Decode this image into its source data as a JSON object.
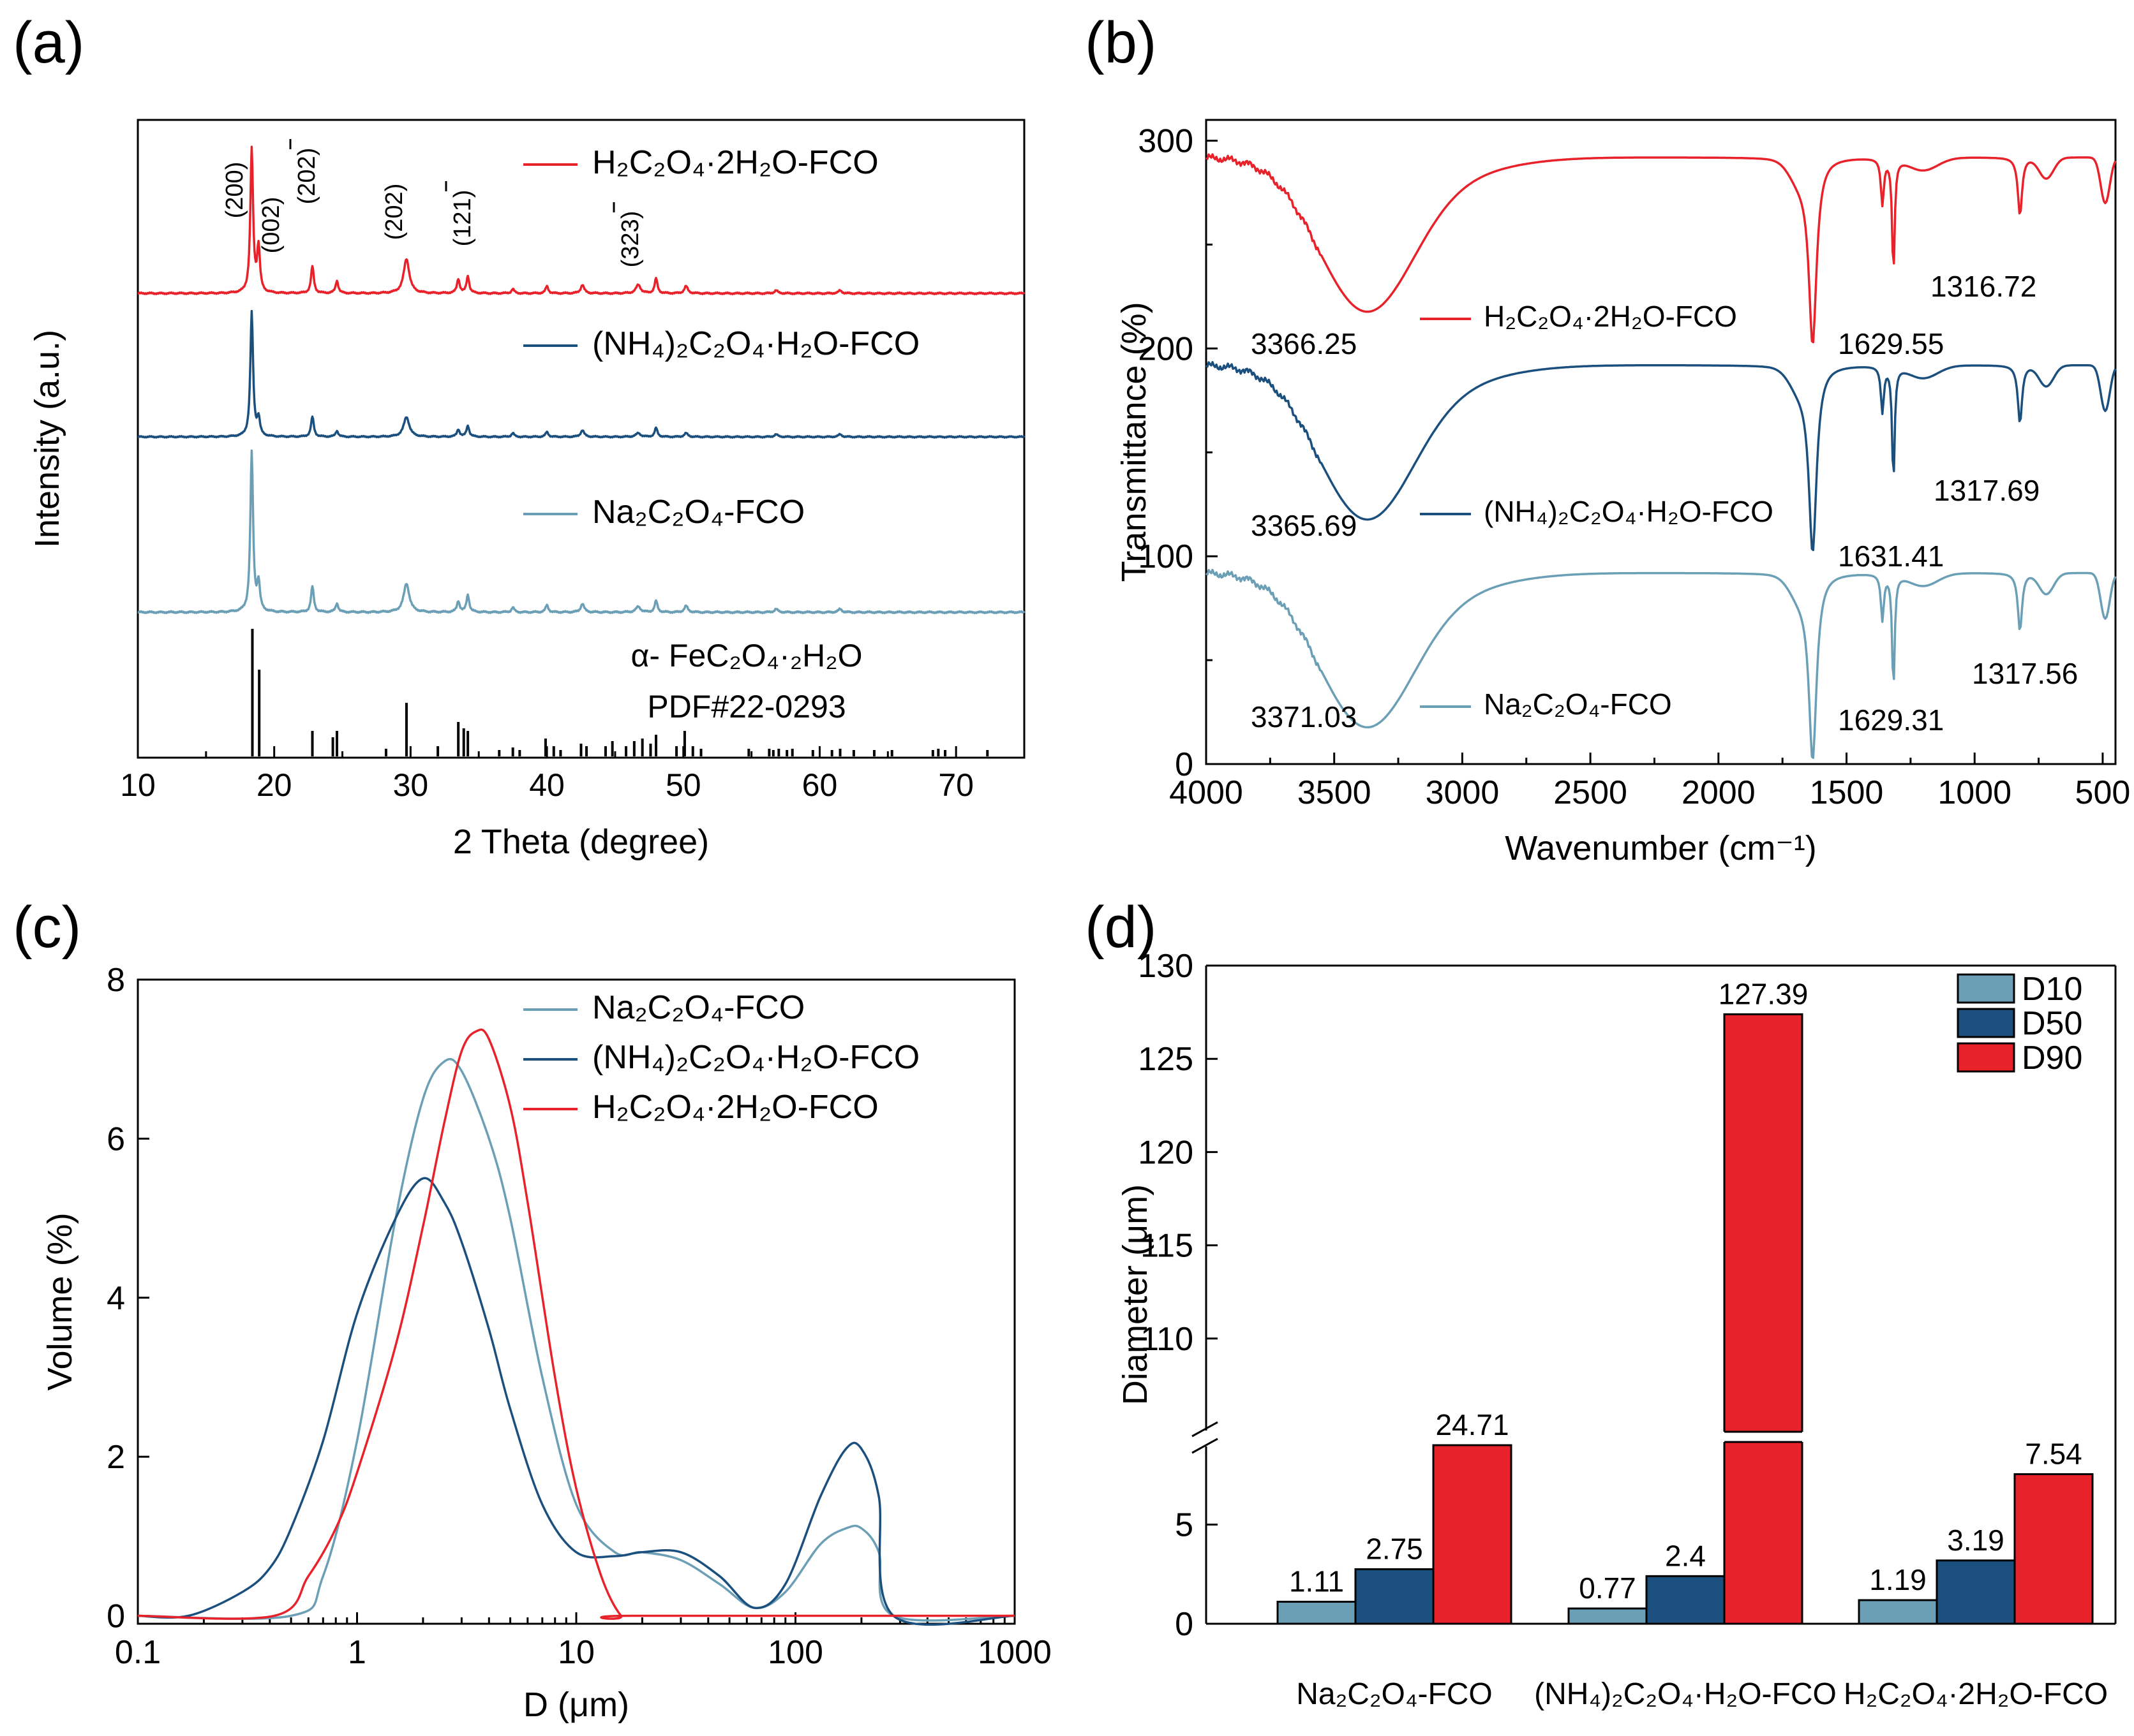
{
  "panels": {
    "a": {
      "label": "(a)"
    },
    "b": {
      "label": "(b)"
    },
    "c": {
      "label": "(c)"
    },
    "d": {
      "label": "(d)"
    }
  },
  "colors": {
    "red": "#e8222a",
    "navy": "#1b4f7d",
    "teal": "#6b9fb5",
    "black": "#000000"
  },
  "chart_data": [
    {
      "id": "a",
      "type": "line",
      "title": "",
      "xlabel": "2 Theta (degree)",
      "ylabel": "Intensity (a.u.)",
      "xlim": [
        10,
        75
      ],
      "xticks": [
        10,
        20,
        30,
        40,
        50,
        60,
        70
      ],
      "series": [
        {
          "name": "H₂C₂O₄·2H₂O-FCO",
          "color": "red"
        },
        {
          "name": "(NH₄)₂C₂O₄·H₂O-FCO",
          "color": "navy"
        },
        {
          "name": "Na₂C₂O₄-FCO",
          "color": "teal"
        }
      ],
      "peak_labels": [
        {
          "x": 18.4,
          "text": "(200)"
        },
        {
          "x": 19.2,
          "text": "(002)"
        },
        {
          "x": 22.8,
          "text": "(202)",
          "bar": true
        },
        {
          "x": 29.7,
          "text": "(202)"
        },
        {
          "x": 34.2,
          "text": "(121)",
          "bar": true
        },
        {
          "x": 48.0,
          "text": "(323)",
          "bar": true
        }
      ],
      "reference": {
        "title": "α- FeC₂O₄·₂H₂O",
        "pdf": "PDF#22-0293",
        "peaks": [
          [
            18.4,
            1.0
          ],
          [
            18.9,
            0.68
          ],
          [
            22.8,
            0.2
          ],
          [
            24.3,
            0.15
          ],
          [
            24.6,
            0.2
          ],
          [
            28.2,
            0.06
          ],
          [
            29.7,
            0.42
          ],
          [
            32.0,
            0.08
          ],
          [
            33.5,
            0.27
          ],
          [
            33.9,
            0.22
          ],
          [
            34.2,
            0.2
          ],
          [
            36.5,
            0.05
          ],
          [
            37.5,
            0.07
          ],
          [
            38.0,
            0.05
          ],
          [
            39.9,
            0.14
          ],
          [
            40.5,
            0.08
          ],
          [
            41.0,
            0.05
          ],
          [
            42.5,
            0.1
          ],
          [
            42.9,
            0.08
          ],
          [
            44.3,
            0.08
          ],
          [
            44.8,
            0.12
          ],
          [
            45.8,
            0.08
          ],
          [
            46.4,
            0.12
          ],
          [
            47.0,
            0.14
          ],
          [
            47.6,
            0.1
          ],
          [
            48.0,
            0.17
          ],
          [
            49.5,
            0.08
          ],
          [
            50.1,
            0.2
          ],
          [
            50.7,
            0.08
          ],
          [
            51.3,
            0.06
          ],
          [
            54.8,
            0.06
          ],
          [
            56.3,
            0.06
          ],
          [
            56.6,
            0.05
          ],
          [
            57.0,
            0.06
          ],
          [
            57.6,
            0.05
          ],
          [
            58.0,
            0.06
          ],
          [
            59.5,
            0.05
          ],
          [
            60.9,
            0.05
          ],
          [
            61.5,
            0.06
          ],
          [
            62.5,
            0.05
          ],
          [
            64.0,
            0.05
          ],
          [
            65.3,
            0.05
          ],
          [
            68.3,
            0.05
          ],
          [
            68.7,
            0.06
          ],
          [
            69.2,
            0.05
          ],
          [
            72.3,
            0.05
          ]
        ]
      }
    },
    {
      "id": "b",
      "type": "line",
      "title": "",
      "xlabel": "Wavenumber (cm⁻¹)",
      "ylabel": "Transmittance (%)",
      "xlim": [
        4000,
        450
      ],
      "ylim": [
        0,
        310
      ],
      "xticks": [
        4000,
        3500,
        3000,
        2500,
        2000,
        1500,
        1000,
        500
      ],
      "yticks": [
        0,
        100,
        200,
        300
      ],
      "series": [
        {
          "name": "H₂C₂O₄·2H₂O-FCO",
          "color": "red",
          "offset": 200,
          "peaks": [
            "3366.25",
            "1629.55",
            "1316.72"
          ]
        },
        {
          "name": "(NH₄)₂C₂O₄·H₂O-FCO",
          "color": "navy",
          "offset": 100,
          "peaks": [
            "3365.69",
            "1631.41",
            "1317.69"
          ]
        },
        {
          "name": "Na₂C₂O₄-FCO",
          "color": "teal",
          "offset": 0,
          "peaks": [
            "3371.03",
            "1629.31",
            "1317.56"
          ]
        }
      ]
    },
    {
      "id": "c",
      "type": "line",
      "title": "",
      "xlabel": "D (μm)",
      "ylabel": "Volume (%)",
      "xscale": "log",
      "xlim": [
        0.1,
        1000
      ],
      "ylim": [
        -0.1,
        8
      ],
      "xticks": [
        "0.1",
        "1",
        "10",
        "100",
        "1000"
      ],
      "yticks": [
        "0",
        "2",
        "4",
        "6",
        "8"
      ],
      "series": [
        {
          "name": "Na₂C₂O₄-FCO",
          "color": "teal",
          "x": [
            0.1,
            0.5,
            0.7,
            1.0,
            1.5,
            2.0,
            2.5,
            3.0,
            4.0,
            5.0,
            7.0,
            10,
            15,
            20,
            30,
            45,
            65,
            90,
            130,
            170,
            200,
            240,
            280,
            1000
          ],
          "y": [
            0,
            0,
            0.5,
            2.2,
            5.0,
            6.5,
            6.97,
            6.85,
            6.0,
            5.0,
            3.0,
            1.4,
            0.8,
            0.8,
            0.7,
            0.4,
            0.1,
            0.3,
            0.9,
            1.1,
            1.1,
            0.8,
            0,
            0
          ]
        },
        {
          "name": "(NH₄)₂C₂O₄·H₂O-FCO",
          "color": "navy",
          "x": [
            0.1,
            0.17,
            0.3,
            0.4,
            0.5,
            0.7,
            1.0,
            1.5,
            2.0,
            2.5,
            3.0,
            4.0,
            5.0,
            7.0,
            10,
            15,
            20,
            30,
            45,
            65,
            90,
            130,
            170,
            200,
            240,
            280,
            1000
          ],
          "y": [
            0,
            0,
            0.3,
            0.6,
            1.1,
            2.2,
            3.8,
            5.0,
            5.5,
            5.2,
            4.7,
            3.6,
            2.6,
            1.4,
            0.8,
            0.75,
            0.8,
            0.8,
            0.5,
            0.1,
            0.4,
            1.5,
            2.1,
            2.1,
            1.5,
            0,
            0
          ]
        },
        {
          "name": "H₂C₂O₄·2H₂O-FCO",
          "color": "red",
          "x": [
            0.1,
            0.42,
            0.6,
            0.8,
            1.0,
            1.5,
            2.0,
            2.5,
            3.0,
            3.5,
            4.0,
            5.0,
            6.0,
            8.0,
            10,
            13,
            16,
            18,
            1000
          ],
          "y": [
            0,
            0,
            0.5,
            1.1,
            1.8,
            3.4,
            4.9,
            6.2,
            7.1,
            7.35,
            7.25,
            6.4,
            5.2,
            3.0,
            1.6,
            0.5,
            0,
            0,
            0
          ]
        }
      ]
    },
    {
      "id": "d",
      "type": "bar",
      "title": "",
      "xlabel": "",
      "ylabel": "Diameter (μm)",
      "axis_break": true,
      "lower_range": [
        0,
        9
      ],
      "upper_range": [
        105,
        130
      ],
      "lower_ticks": [
        "0",
        "5"
      ],
      "upper_ticks": [
        "110",
        "115",
        "120",
        "125",
        "130"
      ],
      "categories": [
        "Na₂C₂O₄-FCO",
        "(NH₄)₂C₂O₄·H₂O-FCO",
        "H₂C₂O₄·2H₂O-FCO"
      ],
      "series": [
        {
          "name": "D10",
          "color": "teal",
          "values": [
            1.11,
            0.77,
            1.19
          ],
          "labels": [
            "1.11",
            "0.77",
            "1.19"
          ]
        },
        {
          "name": "D50",
          "color": "navy",
          "values": [
            2.75,
            2.4,
            3.19
          ],
          "labels": [
            "2.75",
            "2.4",
            "3.19"
          ]
        },
        {
          "name": "D90",
          "color": "red",
          "values": [
            24.71,
            127.39,
            7.54
          ],
          "labels": [
            "24.71",
            "127.39",
            "7.54"
          ]
        }
      ]
    }
  ]
}
